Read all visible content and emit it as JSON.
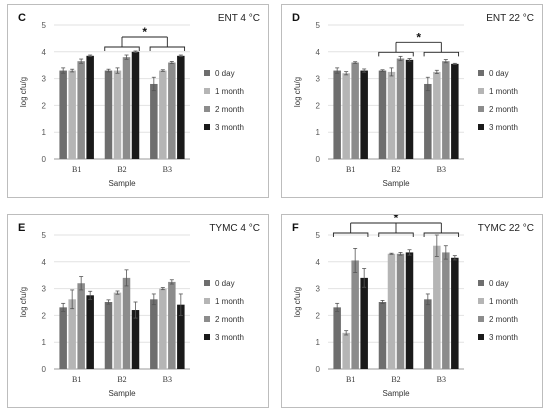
{
  "colors": {
    "0 day": "#6e6e6e",
    "1 month": "#b5b5b5",
    "2 month": "#8c8c8c",
    "3 month": "#1a1a1a"
  },
  "chart_data": [
    {
      "type": "bar",
      "letter": "C",
      "title": "ENT 4 °C",
      "xlabel": "Sample",
      "ylabel": "log cfu/g",
      "ylim": [
        0,
        5
      ],
      "yticks": [
        0,
        1,
        2,
        3,
        4,
        5
      ],
      "categories": [
        "B1",
        "B2",
        "B3"
      ],
      "legend_position": "right",
      "series": [
        {
          "name": "0 day",
          "values": [
            3.3,
            3.3,
            2.8
          ],
          "errors": [
            0.1,
            0.05,
            0.25
          ]
        },
        {
          "name": "1 month",
          "values": [
            3.3,
            3.3,
            3.3
          ],
          "errors": [
            0.05,
            0.1,
            0.03
          ]
        },
        {
          "name": "2 month",
          "values": [
            3.65,
            3.8,
            3.6
          ],
          "errors": [
            0.08,
            0.08,
            0.04
          ]
        },
        {
          "name": "3 month",
          "values": [
            3.85,
            4.0,
            3.85
          ],
          "errors": [
            0.03,
            0.03,
            0.03
          ]
        }
      ],
      "significance": {
        "groups": [
          1,
          2
        ],
        "label": "*"
      }
    },
    {
      "type": "bar",
      "letter": "D",
      "title": "ENT 22 °C",
      "xlabel": "Sample",
      "ylabel": "log cfu/g",
      "ylim": [
        0,
        5
      ],
      "yticks": [
        0,
        1,
        2,
        3,
        4,
        5
      ],
      "categories": [
        "B1",
        "B2",
        "B3"
      ],
      "legend_position": "right",
      "series": [
        {
          "name": "0 day",
          "values": [
            3.3,
            3.3,
            2.8
          ],
          "errors": [
            0.1,
            0.03,
            0.25
          ]
        },
        {
          "name": "1 month",
          "values": [
            3.2,
            3.25,
            3.25
          ],
          "errors": [
            0.06,
            0.15,
            0.06
          ]
        },
        {
          "name": "2 month",
          "values": [
            3.6,
            3.75,
            3.65
          ],
          "errors": [
            0.03,
            0.08,
            0.06
          ]
        },
        {
          "name": "3 month",
          "values": [
            3.3,
            3.7,
            3.55
          ],
          "errors": [
            0.06,
            0.05,
            0.02
          ]
        }
      ],
      "significance": {
        "groups": [
          1,
          2
        ],
        "label": "*"
      }
    },
    {
      "type": "bar",
      "letter": "E",
      "title": "TYMC 4 °C",
      "xlabel": "Sample",
      "ylabel": "log cfu/g",
      "ylim": [
        0,
        5
      ],
      "yticks": [
        0,
        1,
        2,
        3,
        4,
        5
      ],
      "categories": [
        "B1",
        "B2",
        "B3"
      ],
      "legend_position": "right",
      "series": [
        {
          "name": "0 day",
          "values": [
            2.3,
            2.5,
            2.6
          ],
          "errors": [
            0.15,
            0.08,
            0.2
          ]
        },
        {
          "name": "1 month",
          "values": [
            2.6,
            2.85,
            3.0
          ],
          "errors": [
            0.35,
            0.06,
            0.04
          ]
        },
        {
          "name": "2 month",
          "values": [
            3.2,
            3.4,
            3.25
          ],
          "errors": [
            0.25,
            0.3,
            0.08
          ]
        },
        {
          "name": "3 month",
          "values": [
            2.75,
            2.2,
            2.4
          ],
          "errors": [
            0.15,
            0.3,
            0.4
          ]
        }
      ]
    },
    {
      "type": "bar",
      "letter": "F",
      "title": "TYMC 22 °C",
      "xlabel": "Sample",
      "ylabel": "log cfu/g",
      "ylim": [
        0,
        5
      ],
      "yticks": [
        0,
        1,
        2,
        3,
        4,
        5
      ],
      "categories": [
        "B1",
        "B2",
        "B3"
      ],
      "legend_position": "right",
      "series": [
        {
          "name": "0 day",
          "values": [
            2.3,
            2.5,
            2.6
          ],
          "errors": [
            0.15,
            0.06,
            0.2
          ]
        },
        {
          "name": "1 month",
          "values": [
            1.35,
            4.3,
            4.6
          ],
          "errors": [
            0.08,
            0.02,
            0.4
          ]
        },
        {
          "name": "2 month",
          "values": [
            4.05,
            4.3,
            4.35
          ],
          "errors": [
            0.45,
            0.05,
            0.25
          ]
        },
        {
          "name": "3 month",
          "values": [
            3.4,
            4.35,
            4.15
          ],
          "errors": [
            0.35,
            0.1,
            0.08
          ]
        }
      ],
      "significance": {
        "groups": [
          0,
          1,
          2
        ],
        "label": "*"
      }
    }
  ]
}
